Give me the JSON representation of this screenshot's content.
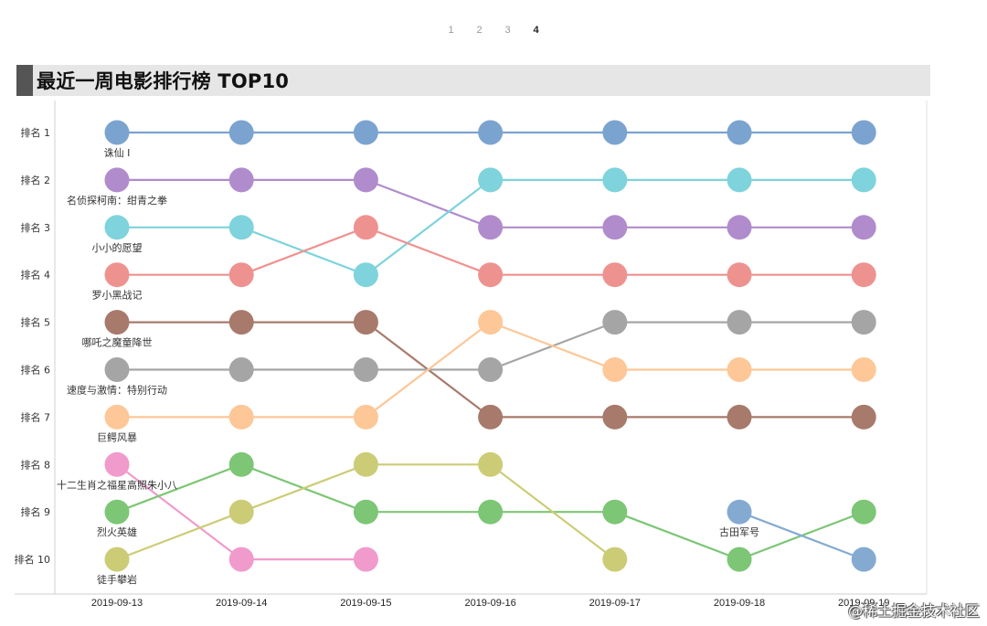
{
  "pagination": {
    "pages": [
      "1",
      "2",
      "3",
      "4"
    ],
    "active": "4"
  },
  "title": "最近一周电影排行榜 TOP10",
  "watermark": "@稀土掘金技术社区",
  "chart_data": {
    "type": "line",
    "subtype": "bump",
    "title": "最近一周电影排行榜 TOP10",
    "dates": [
      "2019-09-13",
      "2019-09-14",
      "2019-09-15",
      "2019-09-16",
      "2019-09-17",
      "2019-09-18",
      "2019-09-19"
    ],
    "rank_labels": [
      "排名 1",
      "排名 2",
      "排名 3",
      "排名 4",
      "排名 5",
      "排名 6",
      "排名 7",
      "排名 8",
      "排名 9",
      "排名 10"
    ],
    "ylim": [
      1,
      10
    ],
    "grid": false,
    "series": [
      {
        "name": "诛仙 Ⅰ",
        "color": "#7ba3cf",
        "ranks": [
          1,
          1,
          1,
          1,
          1,
          1,
          1
        ]
      },
      {
        "name": "名侦探柯南：绀青之拳",
        "color": "#b08ccc",
        "ranks": [
          2,
          2,
          2,
          3,
          3,
          3,
          3
        ]
      },
      {
        "name": "小小的愿望",
        "color": "#7ed3dc",
        "ranks": [
          3,
          3,
          4,
          2,
          2,
          2,
          2
        ]
      },
      {
        "name": "罗小黑战记",
        "color": "#ee9290",
        "ranks": [
          4,
          4,
          3,
          4,
          4,
          4,
          4
        ]
      },
      {
        "name": "哪吒之魔童降世",
        "color": "#a87a6c",
        "ranks": [
          5,
          5,
          5,
          7,
          7,
          7,
          7
        ]
      },
      {
        "name": "速度与激情：特别行动",
        "color": "#a5a5a5",
        "ranks": [
          6,
          6,
          6,
          6,
          5,
          5,
          5
        ]
      },
      {
        "name": "巨鳄风暴",
        "color": "#fdc797",
        "ranks": [
          7,
          7,
          7,
          5,
          6,
          6,
          6
        ]
      },
      {
        "name": "十二生肖之福星高照朱小八",
        "color": "#f09bcb",
        "ranks": [
          8,
          10,
          10,
          null,
          null,
          null,
          null
        ]
      },
      {
        "name": "烈火英雄",
        "color": "#7cc675",
        "ranks": [
          9,
          8,
          9,
          9,
          9,
          10,
          9
        ]
      },
      {
        "name": "徒手攀岩",
        "color": "#cccc77",
        "ranks": [
          10,
          9,
          8,
          8,
          10,
          null,
          null
        ]
      },
      {
        "name": "古田军号",
        "color": "#85aad2",
        "ranks": [
          null,
          null,
          null,
          null,
          null,
          9,
          10
        ],
        "label_at": 5
      }
    ]
  }
}
